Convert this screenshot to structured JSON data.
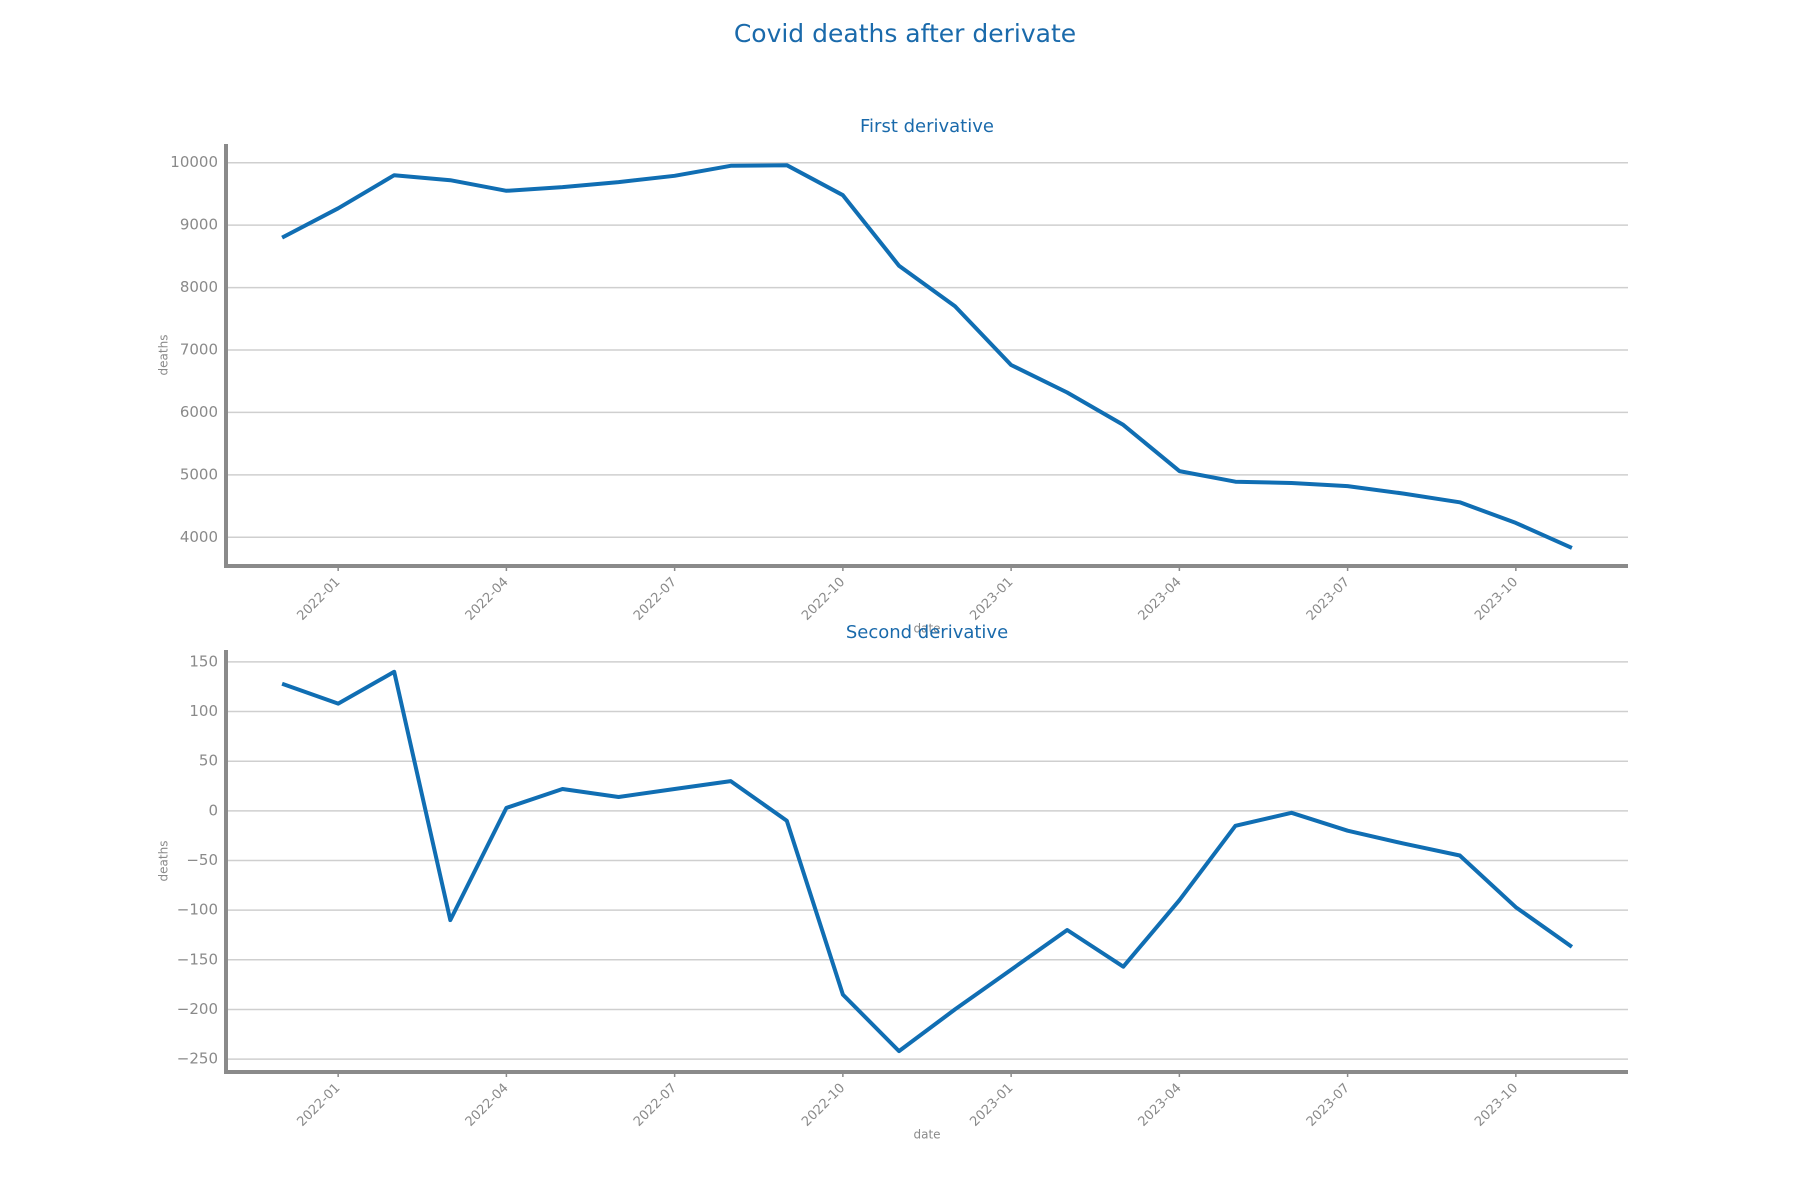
{
  "title": "Covid deaths after derivate",
  "chart_data": [
    {
      "type": "line",
      "title": "First derivative",
      "xlabel": "date",
      "ylabel": "deaths",
      "color": "#106eb3",
      "grid": true,
      "x": [
        "2021-12",
        "2022-01",
        "2022-02",
        "2022-03",
        "2022-04",
        "2022-05",
        "2022-06",
        "2022-07",
        "2022-08",
        "2022-09",
        "2022-10",
        "2022-11",
        "2022-12",
        "2023-01",
        "2023-02",
        "2023-03",
        "2023-04",
        "2023-05",
        "2023-06",
        "2023-07",
        "2023-08",
        "2023-09",
        "2023-10",
        "2023-11"
      ],
      "values": [
        8800,
        9270,
        9800,
        9720,
        9550,
        9610,
        9690,
        9790,
        9950,
        9960,
        9480,
        8350,
        7700,
        6760,
        6320,
        5800,
        5060,
        4890,
        4870,
        4820,
        4700,
        4560,
        4230,
        3830
      ],
      "xlim": [
        "2021-11",
        "2023-12"
      ],
      "xticks": [
        "2022-01",
        "2022-04",
        "2022-07",
        "2022-10",
        "2023-01",
        "2023-04",
        "2023-07",
        "2023-10"
      ],
      "ylim": [
        3540,
        10300
      ],
      "yticks": [
        4000,
        5000,
        6000,
        7000,
        8000,
        9000,
        10000
      ]
    },
    {
      "type": "line",
      "title": "Second derivative",
      "xlabel": "date",
      "ylabel": "deaths",
      "color": "#106eb3",
      "grid": true,
      "x": [
        "2021-12",
        "2022-01",
        "2022-02",
        "2022-03",
        "2022-04",
        "2022-05",
        "2022-06",
        "2022-07",
        "2022-08",
        "2022-09",
        "2022-10",
        "2022-11",
        "2022-12",
        "2023-01",
        "2023-02",
        "2023-03",
        "2023-04",
        "2023-05",
        "2023-06",
        "2023-07",
        "2023-08",
        "2023-09",
        "2023-10",
        "2023-11"
      ],
      "values": [
        128,
        108,
        140,
        -110,
        3,
        22,
        14,
        22,
        30,
        -10,
        -185,
        -242,
        -200,
        -160,
        -120,
        -157,
        -90,
        -15,
        -2,
        -20,
        -33,
        -45,
        -97,
        -137
      ],
      "xlim": [
        "2021-11",
        "2023-12"
      ],
      "xticks": [
        "2022-01",
        "2022-04",
        "2022-07",
        "2022-10",
        "2023-01",
        "2023-04",
        "2023-07",
        "2023-10"
      ],
      "ylim": [
        -263,
        162
      ],
      "yticks": [
        {
          "value": -250,
          "label": "−250"
        },
        {
          "value": -200,
          "label": "−200"
        },
        {
          "value": -150,
          "label": "−150"
        },
        {
          "value": -100,
          "label": "−100"
        },
        {
          "value": -50,
          "label": "−50"
        },
        0,
        50,
        100,
        150
      ]
    }
  ]
}
